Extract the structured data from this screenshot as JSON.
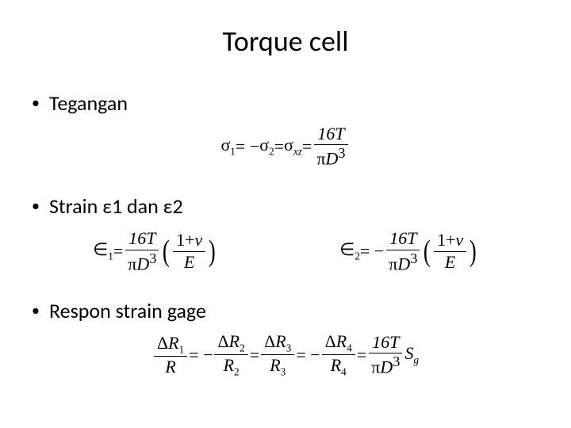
{
  "slide": {
    "title": "Torque cell",
    "title_fontsize": 36,
    "background_color": "#ffffff",
    "text_color": "#000000",
    "bullets": [
      {
        "label": "Tegangan"
      },
      {
        "label": "Strain ε1 dan ε2"
      },
      {
        "label": "Respon strain gage"
      }
    ],
    "bullet_fontsize": 26,
    "equations": {
      "eq1": {
        "lhs_sigma1": "σ",
        "lhs_sub1": "1",
        "eq_a": " = −",
        "lhs_sigma2": "σ",
        "lhs_sub2": "2",
        "eq_b": " = ",
        "lhs_sigmaxz": "σ",
        "lhs_subxz": "xz",
        "eq_c": " = ",
        "num": "16T",
        "den_pi": "π",
        "den_D": "D",
        "den_exp": "3"
      },
      "eq2a": {
        "sym": "∈",
        "sub": "1",
        "eq": " = ",
        "num1": "16T",
        "den1_pi": "π",
        "den1_D": "D",
        "den1_exp": "3",
        "num2_a": "1+",
        "num2_nu": "ν",
        "den2": "E"
      },
      "eq2b": {
        "sym": "∈",
        "sub": "2",
        "eq": " = −",
        "num1": "16T",
        "den1_pi": "π",
        "den1_D": "D",
        "den1_exp": "3",
        "num2_a": "1+",
        "num2_nu": "ν",
        "den2": "E"
      },
      "eq3": {
        "t1_num_d": "Δ",
        "t1_num_R": "R",
        "t1_num_sub": "1",
        "t1_den": "R",
        "eq1": " = −",
        "t2_num_d": "Δ",
        "t2_num_R": "R",
        "t2_num_sub": "2",
        "t2_den_R": "R",
        "t2_den_sub": "2",
        "eq2": " = ",
        "t3_num_d": "Δ",
        "t3_num_R": "R",
        "t3_num_sub": "3",
        "t3_den_R": "R",
        "t3_den_sub": "3",
        "eq3": " = −",
        "t4_num_d": "Δ",
        "t4_num_R": "R",
        "t4_num_sub": "4",
        "t4_den_R": "R",
        "t4_den_sub": "4",
        "eq4": " = ",
        "t5_num": "16T",
        "t5_den_pi": "π",
        "t5_den_D": "D",
        "t5_den_exp": "3",
        "Sg_S": "S",
        "Sg_sub": "g"
      }
    },
    "equation_fontsize": 22,
    "equation_font": "Times New Roman"
  }
}
